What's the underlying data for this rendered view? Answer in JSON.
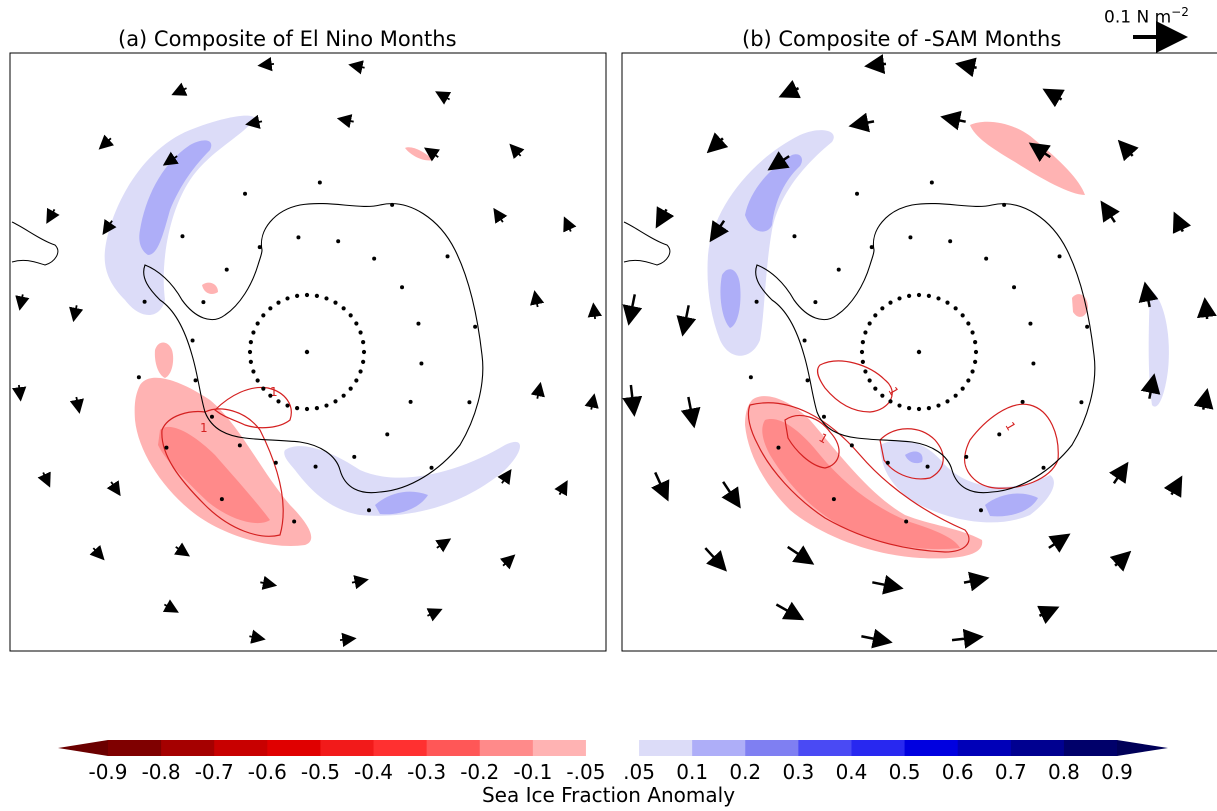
{
  "panels": [
    {
      "id": "a",
      "title": "(a) Composite of El Nino Months"
    },
    {
      "id": "b",
      "title": "(b) Composite of -SAM Months"
    }
  ],
  "vector_scale": {
    "value": "0.1",
    "unit_prefix": "N  m",
    "exponent": "−2"
  },
  "colorbar": {
    "label": "Sea Ice Fraction Anomaly",
    "ticks": [
      "-0.9",
      "-0.8",
      "-0.7",
      "-0.6",
      "-0.5",
      "-0.4",
      "-0.3",
      "-0.2",
      "-0.1",
      "-.05",
      ".05",
      "0.1",
      "0.2",
      "0.3",
      "0.4",
      "0.5",
      "0.6",
      "0.7",
      "0.8",
      "0.9"
    ],
    "colors": [
      "#7f0000",
      "#a50000",
      "#c80000",
      "#e00000",
      "#f21a1a",
      "#ff3030",
      "#ff5757",
      "#ff8a8a",
      "#ffb3b3",
      "#ffffff",
      "#dcdcf8",
      "#aeaef8",
      "#7f7ff2",
      "#4a4af4",
      "#2828f0",
      "#0000e0",
      "#0000b8",
      "#000090",
      "#00006a"
    ],
    "extend_low": "#6b0000",
    "extend_high": "#000058"
  },
  "contour_label": "1",
  "colors": {
    "positive_anomaly": "#f28c8c",
    "negative_anomaly": "#c7c7f5",
    "contour": "#d42020",
    "coast": "#000000"
  }
}
